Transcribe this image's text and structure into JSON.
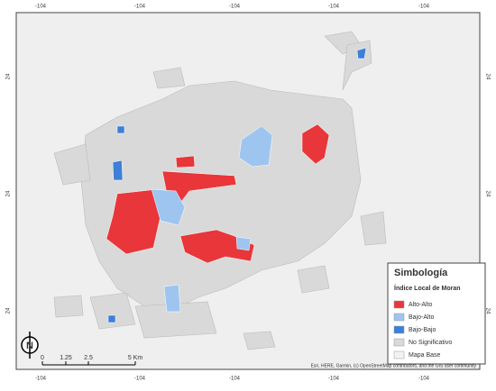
{
  "map": {
    "frame_labels": {
      "top": [
        "-104",
        "-104",
        "-104",
        "-104",
        "-104"
      ],
      "bottom": [
        "-104",
        "-104",
        "-104",
        "-104",
        "-104"
      ],
      "left": [
        "24",
        "24",
        "24"
      ],
      "right": [
        "24",
        "24",
        "24"
      ]
    },
    "legend": {
      "title": "Simbología",
      "subtitle": "Índice Local de Moran",
      "items": [
        {
          "label": "Alto-Alto",
          "color": "#e8363a"
        },
        {
          "label": "Bajo-Alto",
          "color": "#9ec5f0"
        },
        {
          "label": "Bajo-Bajo",
          "color": "#3d7fd9"
        },
        {
          "label": "No Significativo",
          "color": "#d9d9d9"
        },
        {
          "label": "Mapa Base",
          "color": "#f2f2f2"
        }
      ]
    },
    "scale_bar": {
      "labels": [
        "0",
        "1.25",
        "2.5",
        "5 Km"
      ]
    },
    "north": "N",
    "attribution": "Esri, HERE, Garmin, (c) OpenStreetMap contributors, and the GIS user community"
  }
}
